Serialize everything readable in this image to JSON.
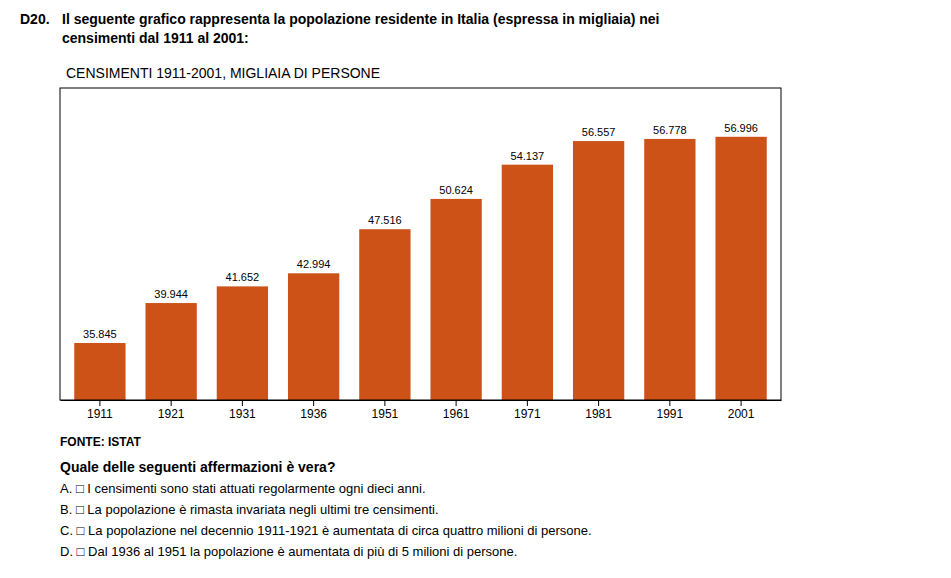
{
  "chart_data": {
    "type": "bar",
    "title": "CENSIMENTI 1911-2001, MIGLIAIA DI PERSONE",
    "categories": [
      "1911",
      "1921",
      "1931",
      "1936",
      "1951",
      "1961",
      "1971",
      "1981",
      "1991",
      "2001"
    ],
    "values": [
      35.845,
      39.944,
      41.652,
      42.994,
      47.516,
      50.624,
      54.137,
      56.557,
      56.778,
      56.996
    ],
    "color": "#cc5218",
    "ylim": [
      30,
      62
    ],
    "tick_labels": "x",
    "grid": false,
    "data_labels": true,
    "annotations": [
      "D20.",
      "Il seguente grafico rappresenta la popolazione residente in Italia (espressa in migliaia) nei\ncensimenti dal 1911 al 2001:",
      "FONTE: ISTAT",
      "Quale delle seguenti affermazioni è vera?",
      "A.  □   I censimenti sono stati attuati regolarmente ogni dieci anni.",
      "B.  □   La popolazione è rimasta invariata negli ultimi tre censimenti.",
      "C.  □   La popolazione nel decennio 1911-1921 è aumentata di circa quattro milioni di persone.",
      "D.  □   Dal 1936 al 1951 la popolazione è aumentata di più di 5 milioni di persone."
    ]
  }
}
